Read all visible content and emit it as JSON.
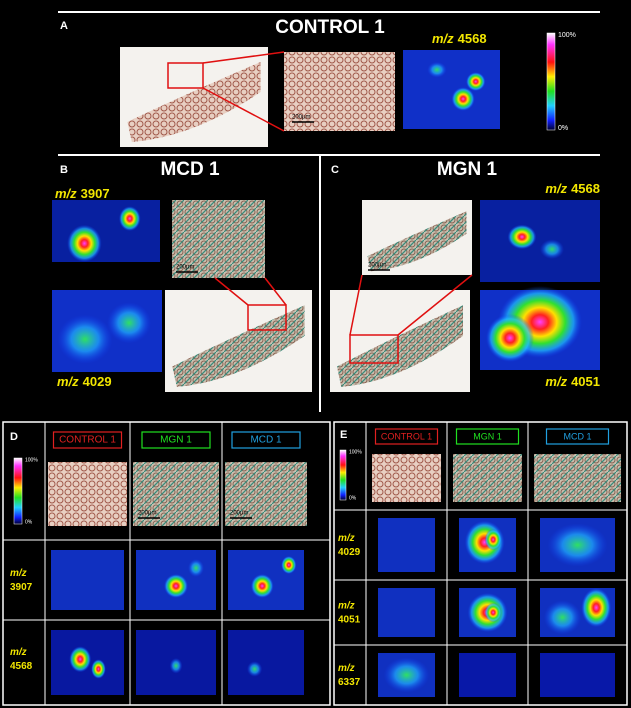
{
  "panel_a": {
    "letter": "A",
    "title": "CONTROL 1",
    "ion": {
      "prefix": "m/z",
      "mass": "4568"
    },
    "scale_bar": "200µm",
    "colorbar": {
      "max": "100%",
      "min": "0%"
    }
  },
  "panel_b": {
    "letter": "B",
    "title": "MCD 1",
    "ions": [
      {
        "prefix": "m/z",
        "mass": "3907"
      },
      {
        "prefix": "m/z",
        "mass": "4029"
      }
    ],
    "scale_bar": "200µm"
  },
  "panel_c": {
    "letter": "C",
    "title": "MGN 1",
    "ions": [
      {
        "prefix": "m/z",
        "mass": "4568"
      },
      {
        "prefix": "m/z",
        "mass": "4051"
      }
    ],
    "scale_bar": "200µm"
  },
  "panel_d": {
    "letter": "D",
    "columns": [
      "CONTROL 1",
      "MGN 1",
      "MCD 1"
    ],
    "colorbar": {
      "max": "100%",
      "min": "0%"
    },
    "scale_bars": [
      "200µm",
      "200µm"
    ],
    "ions": [
      {
        "prefix": "m/z",
        "mass": "3907"
      },
      {
        "prefix": "m/z",
        "mass": "4568"
      }
    ]
  },
  "panel_e": {
    "letter": "E",
    "columns": [
      "CONTROL 1",
      "MGN 1",
      "MCD 1"
    ],
    "colorbar": {
      "max": "100%",
      "min": "0%"
    },
    "ions": [
      {
        "prefix": "m/z",
        "mass": "4029"
      },
      {
        "prefix": "m/z",
        "mass": "4051"
      },
      {
        "prefix": "m/z",
        "mass": "6337"
      }
    ]
  }
}
